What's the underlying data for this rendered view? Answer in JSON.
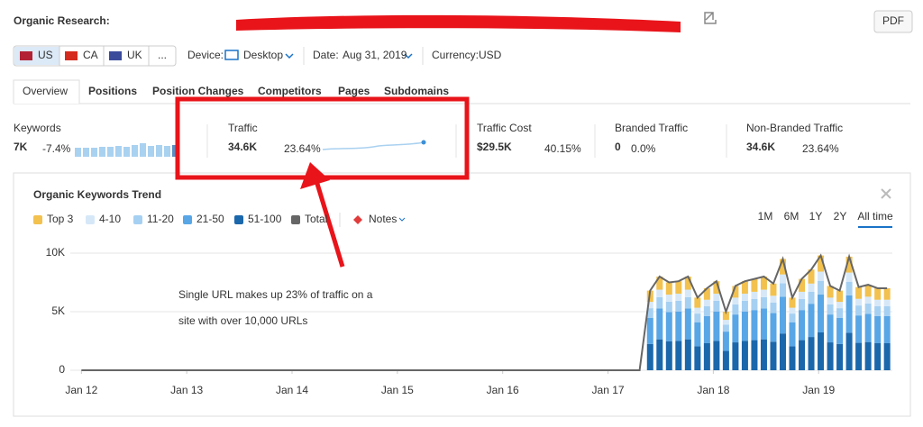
{
  "header": {
    "title": "Organic Research:",
    "pdf": "PDF"
  },
  "filters": {
    "countries": [
      "US",
      "CA",
      "UK",
      "..."
    ],
    "device_label": "Device:",
    "device": "Desktop",
    "date_label": "Date:",
    "date": "Aug 31, 2019",
    "currency_label": "Currency:",
    "currency": "USD"
  },
  "tabs": [
    "Overview",
    "Positions",
    "Position Changes",
    "Competitors",
    "Pages",
    "Subdomains"
  ],
  "metrics": [
    {
      "label": "Keywords",
      "value": "7K",
      "change": "-7.4%"
    },
    {
      "label": "Traffic",
      "value": "34.6K",
      "change": "23.64%"
    },
    {
      "label": "Traffic Cost",
      "value": "$29.5K",
      "change": "40.15%"
    },
    {
      "label": "Branded Traffic",
      "value": "0",
      "change": "0.0%"
    },
    {
      "label": "Non-Branded Traffic",
      "value": "34.6K",
      "change": "23.64%"
    }
  ],
  "chart_controls": {
    "notes": "Notes",
    "ranges": [
      "1M",
      "6M",
      "1Y",
      "2Y",
      "All time"
    ]
  },
  "annotation": [
    "Single URL makes up 23% of traffic on a",
    "site with over 10,000 URLs"
  ],
  "chart_data": {
    "type": "bar",
    "title": "Organic Keywords Trend",
    "stacked": true,
    "grid": true,
    "x": [
      2017.4,
      2017.49,
      2017.58,
      2017.67,
      2017.76,
      2017.85,
      2017.94,
      2018.03,
      2018.12,
      2018.21,
      2018.3,
      2018.39,
      2018.48,
      2018.57,
      2018.66,
      2018.75,
      2018.84,
      2018.93,
      2019.02,
      2019.11,
      2019.2,
      2019.29,
      2019.38,
      2019.47,
      2019.56,
      2019.65
    ],
    "series": [
      {
        "name": "Top 3",
        "color": "#f2c14e",
        "values": [
          960,
          1120,
          1040,
          1060,
          1120,
          860,
          980,
          1060,
          700,
          1000,
          1060,
          1100,
          1120,
          1040,
          1320,
          860,
          1100,
          1200,
          1380,
          1000,
          960,
          1360,
          1000,
          1020,
          980,
          980
        ]
      },
      {
        "name": "4-10",
        "color": "#d6e8f8",
        "values": [
          540,
          640,
          600,
          610,
          640,
          500,
          560,
          610,
          400,
          580,
          610,
          620,
          640,
          590,
          760,
          500,
          620,
          690,
          780,
          580,
          540,
          780,
          570,
          580,
          560,
          560
        ]
      },
      {
        "name": "11-20",
        "color": "#a6d0f2",
        "values": [
          820,
          960,
          900,
          910,
          960,
          740,
          840,
          910,
          600,
          860,
          910,
          940,
          960,
          890,
          1140,
          740,
          940,
          1030,
          1180,
          860,
          820,
          1160,
          850,
          880,
          840,
          840
        ]
      },
      {
        "name": "21-50",
        "color": "#58a6e6",
        "values": [
          2240,
          2640,
          2480,
          2510,
          2640,
          2050,
          2310,
          2510,
          1650,
          2380,
          2510,
          2570,
          2640,
          2440,
          3140,
          2050,
          2570,
          2840,
          3230,
          2380,
          2240,
          3200,
          2340,
          2410,
          2310,
          2310
        ]
      },
      {
        "name": "51-100",
        "color": "#1b67ab",
        "values": [
          2240,
          2640,
          2480,
          2510,
          2640,
          2050,
          2310,
          2510,
          1650,
          2380,
          2510,
          2570,
          2640,
          2440,
          3140,
          2050,
          2570,
          2840,
          3230,
          2380,
          2240,
          3200,
          2340,
          2410,
          2310,
          2310
        ]
      },
      {
        "name": "Total",
        "color": "#666666",
        "type": "line",
        "x": [
          2012.0,
          2017.3,
          2017.4,
          2017.49,
          2017.58,
          2017.67,
          2017.76,
          2017.85,
          2017.94,
          2018.03,
          2018.12,
          2018.21,
          2018.3,
          2018.39,
          2018.48,
          2018.57,
          2018.66,
          2018.75,
          2018.84,
          2018.93,
          2019.02,
          2019.11,
          2019.2,
          2019.29,
          2019.38,
          2019.47,
          2019.56,
          2019.65
        ],
        "values": [
          0,
          0,
          6800,
          8000,
          7500,
          7600,
          8000,
          6200,
          7000,
          7600,
          5000,
          7200,
          7600,
          7800,
          8000,
          7400,
          9500,
          6200,
          7800,
          8600,
          9800,
          7200,
          6800,
          9700,
          7100,
          7300,
          7000,
          7000
        ]
      }
    ],
    "xlim": [
      2011.98,
      2019.7
    ],
    "xticks": [
      {
        "value": 2012,
        "label": "Jan 12"
      },
      {
        "value": 2013,
        "label": "Jan 13"
      },
      {
        "value": 2014,
        "label": "Jan 14"
      },
      {
        "value": 2015,
        "label": "Jan 15"
      },
      {
        "value": 2016,
        "label": "Jan 16"
      },
      {
        "value": 2017,
        "label": "Jan 17"
      },
      {
        "value": 2018,
        "label": "Jan 18"
      },
      {
        "value": 2019,
        "label": "Jan 19"
      }
    ],
    "ylim": [
      0,
      10000
    ],
    "yticks": [
      0,
      {
        "value": 5000,
        "label": "5K"
      },
      {
        "value": 10000,
        "label": "10K"
      }
    ]
  }
}
